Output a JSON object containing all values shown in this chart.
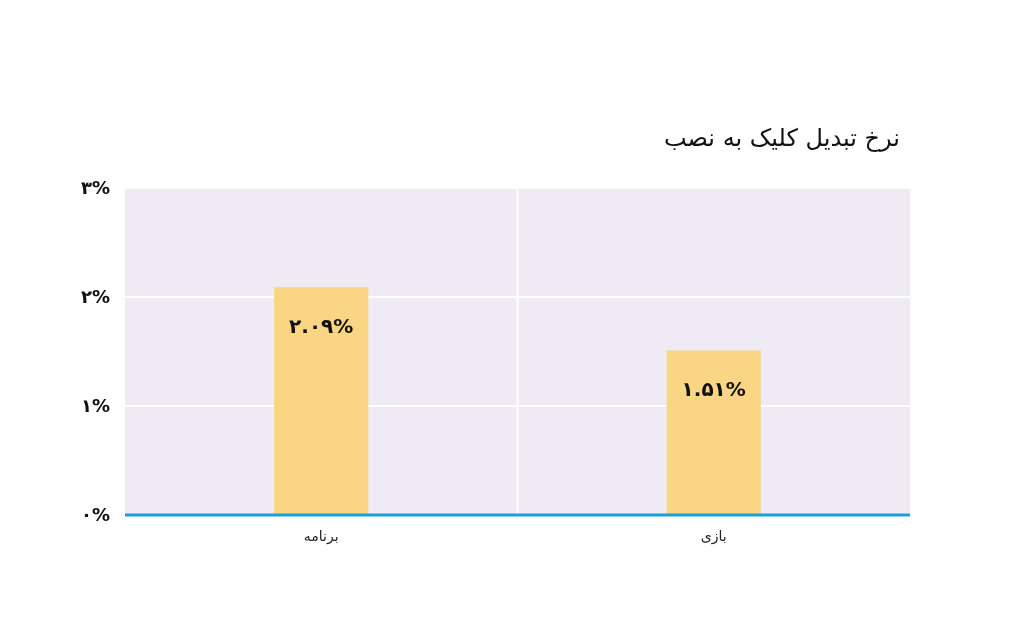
{
  "chart_data": {
    "type": "bar",
    "title": "نرخ تبدیل کلیک به نصب",
    "categories": [
      "برنامه",
      "بازی"
    ],
    "values": [
      2.09,
      1.51
    ],
    "value_labels": [
      "۲.۰۹%",
      "۱.۵۱%"
    ],
    "color": "#fad584",
    "ylim": [
      0,
      3
    ],
    "yticks": [
      {
        "value": 0,
        "label": "۰%"
      },
      {
        "value": 1,
        "label": "۱%"
      },
      {
        "value": 2,
        "label": "۲%"
      },
      {
        "value": 3,
        "label": "۳%"
      }
    ],
    "grid": true
  }
}
